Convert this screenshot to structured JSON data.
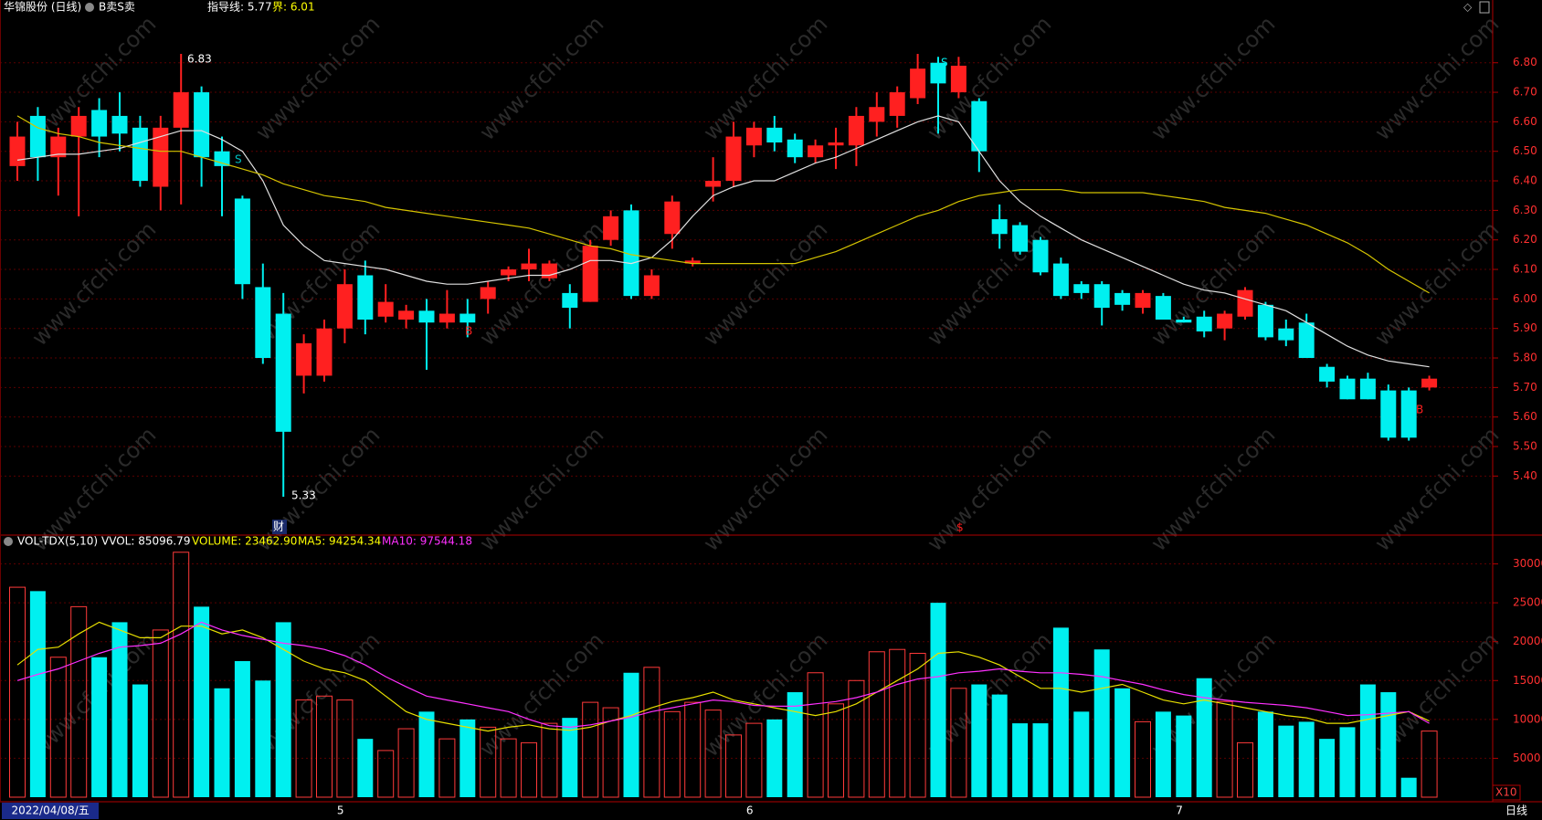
{
  "header": {
    "title": "华锦股份 (日线)",
    "indicator": "B卖S卖",
    "guide": "指导线: 5.77",
    "bound": "界: 6.01"
  },
  "volume_header": {
    "name": "VOL-TDX(5,10)",
    "vvol": "VVOL: 85096.79",
    "volume": "VOLUME: 23462.90",
    "ma5": "MA5: 94254.34",
    "ma10": "MA10: 97544.18"
  },
  "annotations": [
    "6.83",
    "5.33",
    "财",
    "S",
    "B",
    "B",
    "$",
    "S"
  ],
  "footer": {
    "multiplier": "X10",
    "period": "日线"
  },
  "watermark": "www.cfchi.com",
  "chart_data": [
    {
      "type": "candlestick",
      "up_color": "#ff2020",
      "down_color": "#00f0f0",
      "categories": [
        "2022/04/08/五",
        null,
        null,
        null,
        null,
        null,
        null,
        null,
        null,
        null,
        null,
        null,
        null,
        null,
        null,
        null,
        "5",
        null,
        null,
        null,
        null,
        null,
        null,
        null,
        null,
        null,
        null,
        null,
        null,
        null,
        null,
        null,
        null,
        null,
        null,
        null,
        "6",
        null,
        null,
        null,
        null,
        null,
        null,
        null,
        null,
        null,
        null,
        null,
        null,
        null,
        null,
        null,
        null,
        null,
        null,
        null,
        null,
        "7",
        null,
        null,
        null,
        null,
        null,
        null,
        null,
        null,
        null,
        null,
        null,
        null
      ],
      "open": [
        6.45,
        6.62,
        6.48,
        6.55,
        6.64,
        6.62,
        6.58,
        6.38,
        6.58,
        6.7,
        6.5,
        6.34,
        6.04,
        5.95,
        5.74,
        5.74,
        5.9,
        6.08,
        5.94,
        5.93,
        5.96,
        5.92,
        5.95,
        6.0,
        6.08,
        6.1,
        6.07,
        6.02,
        5.99,
        6.2,
        6.3,
        6.01,
        6.22,
        6.12,
        6.38,
        6.4,
        6.52,
        6.58,
        6.54,
        6.48,
        6.52,
        6.52,
        6.6,
        6.62,
        6.68,
        6.8,
        6.7,
        6.67,
        6.27,
        6.25,
        6.2,
        6.12,
        6.05,
        6.05,
        6.02,
        5.97,
        6.01,
        5.93,
        5.94,
        5.9,
        5.94,
        5.98,
        5.9,
        5.92,
        5.77,
        5.73,
        5.73,
        5.69,
        5.69,
        5.7
      ],
      "high": [
        6.6,
        6.65,
        6.58,
        6.65,
        6.68,
        6.7,
        6.62,
        6.62,
        6.83,
        6.72,
        6.55,
        6.35,
        6.12,
        6.02,
        5.88,
        5.93,
        6.1,
        6.13,
        6.05,
        5.98,
        6.0,
        6.03,
        6.0,
        6.06,
        6.11,
        6.17,
        6.13,
        6.05,
        6.2,
        6.3,
        6.32,
        6.1,
        6.35,
        6.14,
        6.48,
        6.6,
        6.6,
        6.62,
        6.56,
        6.54,
        6.58,
        6.65,
        6.7,
        6.72,
        6.83,
        6.82,
        6.82,
        6.68,
        6.32,
        6.26,
        6.21,
        6.14,
        6.06,
        6.06,
        6.03,
        6.03,
        6.02,
        5.94,
        5.96,
        5.96,
        6.04,
        5.99,
        5.93,
        5.95,
        5.78,
        5.74,
        5.75,
        5.71,
        5.7,
        5.74
      ],
      "low": [
        6.4,
        6.4,
        6.35,
        6.28,
        6.48,
        6.5,
        6.38,
        6.3,
        6.32,
        6.38,
        6.28,
        6.0,
        5.78,
        5.33,
        5.68,
        5.72,
        5.85,
        5.88,
        5.92,
        5.9,
        5.76,
        5.9,
        5.87,
        5.95,
        6.06,
        6.06,
        6.06,
        5.9,
        5.99,
        6.18,
        6.0,
        6.0,
        6.17,
        6.11,
        6.33,
        6.38,
        6.48,
        6.5,
        6.46,
        6.46,
        6.44,
        6.45,
        6.55,
        6.58,
        6.66,
        6.56,
        6.68,
        6.43,
        6.17,
        6.15,
        6.08,
        6.0,
        6.0,
        5.91,
        5.96,
        5.95,
        5.93,
        5.92,
        5.87,
        5.86,
        5.93,
        5.86,
        5.84,
        5.8,
        5.7,
        5.66,
        5.66,
        5.52,
        5.52,
        5.69
      ],
      "close": [
        6.55,
        6.48,
        6.55,
        6.62,
        6.55,
        6.56,
        6.4,
        6.58,
        6.7,
        6.48,
        6.45,
        6.05,
        5.8,
        5.55,
        5.85,
        5.9,
        6.05,
        5.93,
        5.99,
        5.96,
        5.92,
        5.95,
        5.92,
        6.04,
        6.1,
        6.12,
        6.12,
        5.97,
        6.18,
        6.28,
        6.01,
        6.08,
        6.33,
        6.13,
        6.4,
        6.55,
        6.58,
        6.53,
        6.48,
        6.52,
        6.53,
        6.62,
        6.65,
        6.7,
        6.78,
        6.73,
        6.79,
        6.5,
        6.22,
        6.16,
        6.09,
        6.01,
        6.02,
        5.97,
        5.98,
        6.02,
        5.93,
        5.92,
        5.89,
        5.95,
        6.03,
        5.87,
        5.86,
        5.8,
        5.72,
        5.66,
        5.66,
        5.53,
        5.53,
        5.73
      ],
      "lines": [
        {
          "color": "#e0e0e0",
          "values": [
            6.47,
            6.48,
            6.49,
            6.49,
            6.5,
            6.51,
            6.53,
            6.55,
            6.57,
            6.57,
            6.54,
            6.5,
            6.4,
            6.25,
            6.18,
            6.13,
            6.12,
            6.11,
            6.1,
            6.08,
            6.06,
            6.05,
            6.05,
            6.06,
            6.07,
            6.08,
            6.08,
            6.1,
            6.13,
            6.13,
            6.12,
            6.14,
            6.2,
            6.28,
            6.35,
            6.38,
            6.4,
            6.4,
            6.43,
            6.46,
            6.48,
            6.51,
            6.54,
            6.57,
            6.6,
            6.62,
            6.6,
            6.5,
            6.4,
            6.33,
            6.28,
            6.24,
            6.2,
            6.17,
            6.14,
            6.11,
            6.08,
            6.05,
            6.03,
            6.02,
            6.0,
            5.98,
            5.96,
            5.92,
            5.88,
            5.84,
            5.81,
            5.79,
            5.78,
            5.77
          ]
        },
        {
          "color": "#d4c400",
          "values": [
            6.62,
            6.58,
            6.56,
            6.55,
            6.53,
            6.52,
            6.51,
            6.5,
            6.5,
            6.48,
            6.46,
            6.44,
            6.42,
            6.39,
            6.37,
            6.35,
            6.34,
            6.33,
            6.31,
            6.3,
            6.29,
            6.28,
            6.27,
            6.26,
            6.25,
            6.24,
            6.22,
            6.2,
            6.18,
            6.17,
            6.15,
            6.14,
            6.13,
            6.12,
            6.12,
            6.12,
            6.12,
            6.12,
            6.12,
            6.14,
            6.16,
            6.19,
            6.22,
            6.25,
            6.28,
            6.3,
            6.33,
            6.35,
            6.36,
            6.37,
            6.37,
            6.37,
            6.36,
            6.36,
            6.36,
            6.36,
            6.35,
            6.34,
            6.33,
            6.31,
            6.3,
            6.29,
            6.27,
            6.25,
            6.22,
            6.19,
            6.15,
            6.1,
            6.06,
            6.02
          ]
        }
      ],
      "ylim": [
        5.2,
        6.96
      ],
      "yticks": [
        {
          "value": 5.4,
          "label": "5.40"
        },
        {
          "value": 5.5,
          "label": "5.50"
        },
        {
          "value": 5.6,
          "label": "5.60"
        },
        {
          "value": 5.7,
          "label": "5.70"
        },
        {
          "value": 5.8,
          "label": "5.80"
        },
        {
          "value": 5.9,
          "label": "5.90"
        },
        {
          "value": 6.0,
          "label": "6.00"
        },
        {
          "value": 6.1,
          "label": "6.10"
        },
        {
          "value": 6.2,
          "label": "6.20"
        },
        {
          "value": 6.3,
          "label": "6.30"
        },
        {
          "value": 6.4,
          "label": "6.40"
        },
        {
          "value": 6.5,
          "label": "6.50"
        },
        {
          "value": 6.6,
          "label": "6.60"
        },
        {
          "value": 6.7,
          "label": "6.70"
        },
        {
          "value": 6.8,
          "label": "6.80"
        }
      ],
      "grid": true
    },
    {
      "type": "volume",
      "up_color": "#ff3a3a",
      "down_color": "#00f0f0",
      "values": [
        27000,
        26500,
        18000,
        24500,
        18000,
        22500,
        14500,
        21500,
        31500,
        24500,
        14000,
        17500,
        15000,
        22500,
        12500,
        13000,
        12500,
        7500,
        6000,
        8800,
        11000,
        7500,
        10000,
        9000,
        7500,
        7000,
        9500,
        10200,
        12200,
        11500,
        16000,
        16700,
        11000,
        12200,
        11200,
        8000,
        9500,
        10000,
        13500,
        16000,
        12000,
        15000,
        18700,
        19000,
        18500,
        25000,
        14000,
        14500,
        13200,
        9500,
        9500,
        21800,
        11000,
        19000,
        14000,
        9700,
        11000,
        10500,
        15300,
        12300,
        7000,
        11000,
        9200,
        9700,
        7500,
        9000,
        14500,
        13500,
        2500,
        8500
      ],
      "lines": [
        {
          "color": "#e8e000",
          "values": [
            17000,
            19000,
            19300,
            21000,
            22500,
            21500,
            20500,
            20500,
            22000,
            22000,
            21000,
            21500,
            20500,
            19000,
            17500,
            16500,
            16000,
            15000,
            13000,
            11000,
            10000,
            9500,
            9000,
            8500,
            9000,
            9300,
            8800,
            8600,
            9000,
            9800,
            10500,
            11500,
            12300,
            12800,
            13500,
            12500,
            12000,
            11500,
            11000,
            10500,
            11000,
            12000,
            13500,
            15000,
            16500,
            18500,
            18700,
            18000,
            17000,
            15500,
            14000,
            14000,
            13500,
            14000,
            14500,
            13500,
            12500,
            12000,
            12500,
            12000,
            11500,
            11000,
            10500,
            10200,
            9500,
            9500,
            10000,
            10500,
            11000,
            9800
          ]
        },
        {
          "color": "#ff30ff",
          "values": [
            15000,
            15800,
            16500,
            17500,
            18500,
            19300,
            19500,
            19800,
            21000,
            22500,
            21500,
            20800,
            20300,
            19800,
            19500,
            19000,
            18200,
            17000,
            15500,
            14200,
            13000,
            12500,
            12000,
            11500,
            11000,
            10000,
            9200,
            9000,
            9300,
            9800,
            10300,
            11000,
            11500,
            12000,
            12500,
            12300,
            11800,
            11700,
            11700,
            12000,
            12300,
            12800,
            13500,
            14500,
            15200,
            15500,
            16000,
            16200,
            16500,
            16200,
            16000,
            16000,
            15800,
            15500,
            15000,
            14500,
            13800,
            13200,
            12800,
            12500,
            12200,
            12000,
            11800,
            11500,
            11000,
            10500,
            10600,
            10800,
            11000,
            9500
          ]
        }
      ],
      "ylim": [
        0,
        33000
      ],
      "yticks": [
        5000,
        10000,
        15000,
        20000,
        25000,
        30000
      ],
      "grid": true
    }
  ]
}
